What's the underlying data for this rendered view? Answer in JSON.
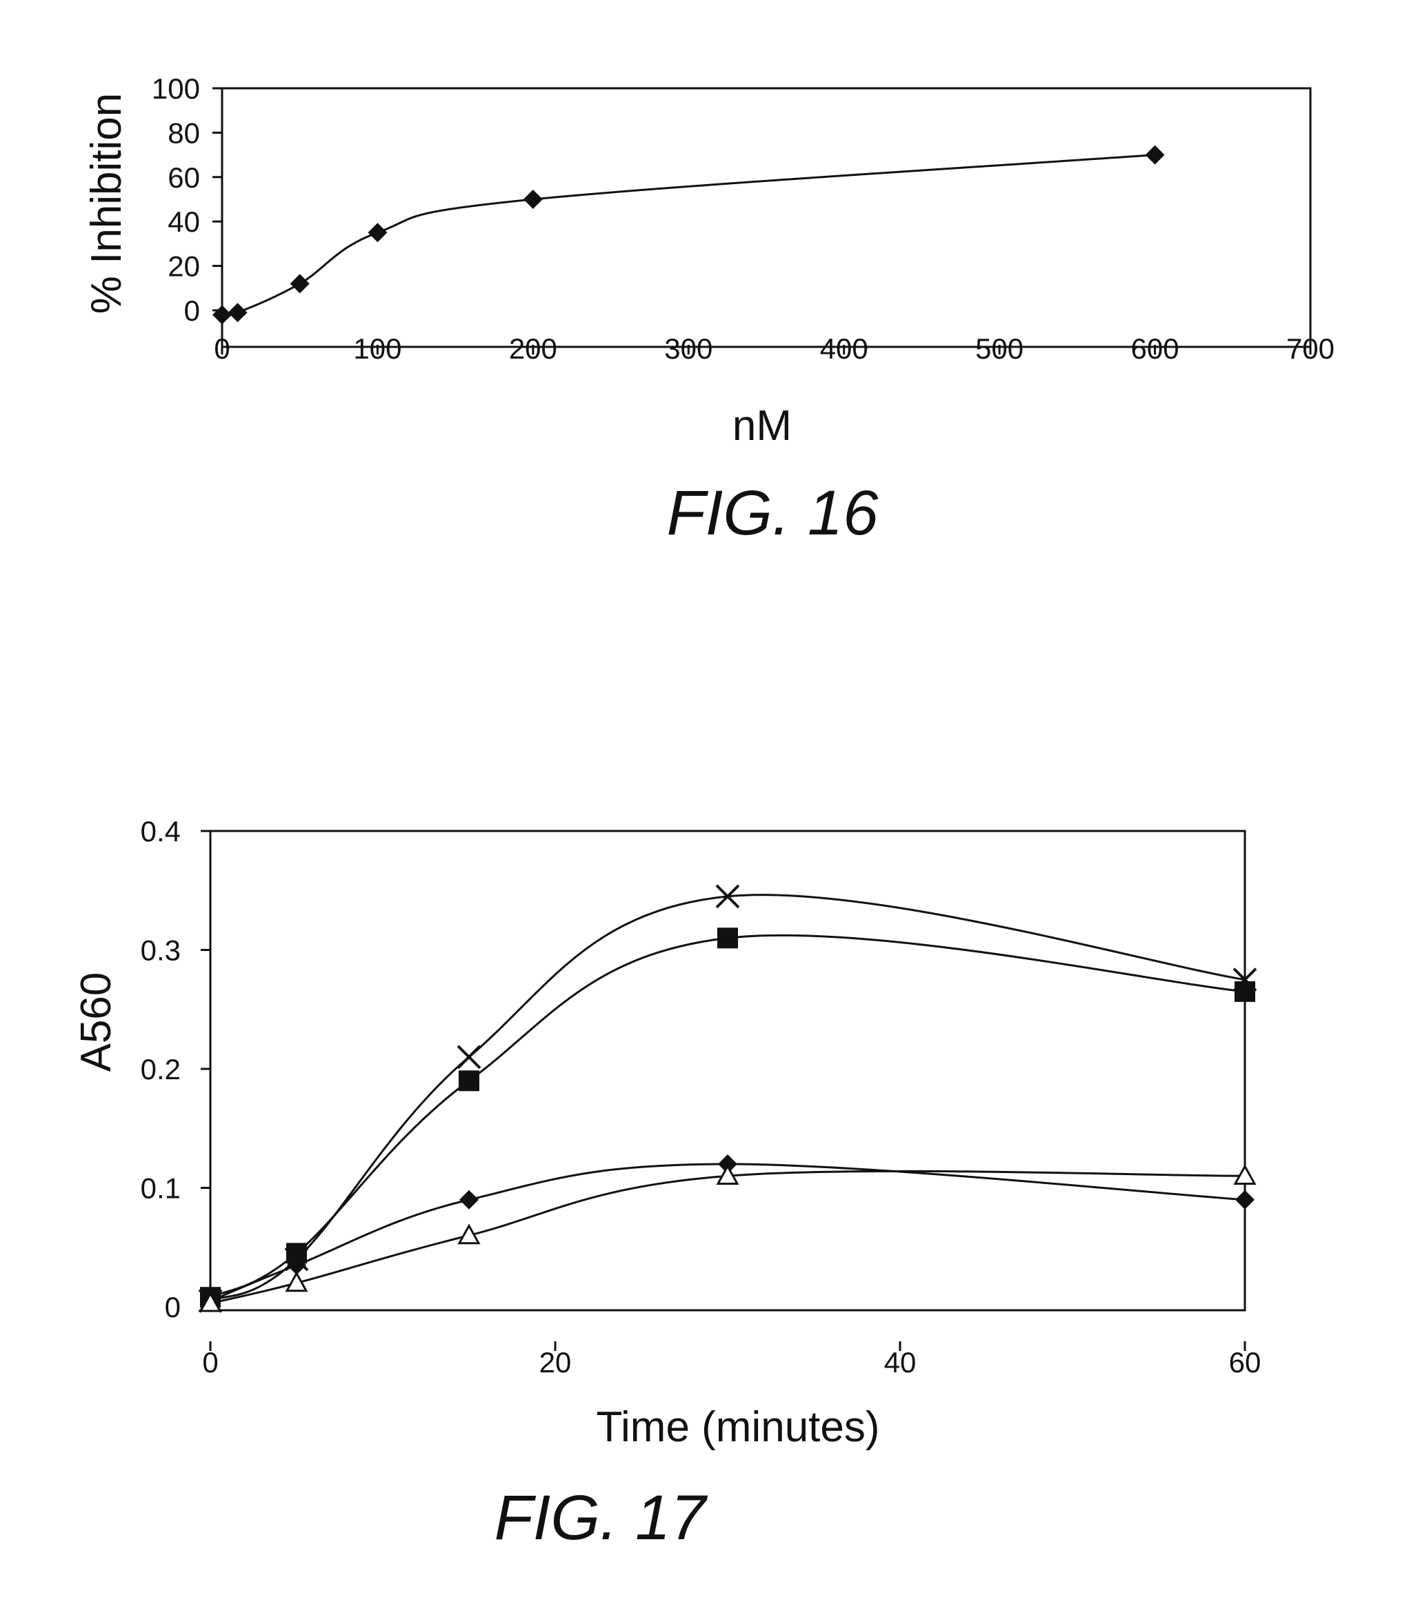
{
  "figures": [
    {
      "caption": "FIG. 16"
    },
    {
      "caption": "FIG. 17"
    }
  ],
  "chart_data": [
    {
      "type": "line",
      "title": "",
      "xlabel": "nM",
      "ylabel": "% Inhibition",
      "xlim": [
        0,
        700
      ],
      "ylim": [
        0,
        100
      ],
      "xticks": [
        "0",
        "100",
        "200",
        "300",
        "400",
        "500",
        "600",
        "700"
      ],
      "yticks": [
        "0",
        "20",
        "40",
        "60",
        "80",
        "100"
      ],
      "grid": false,
      "series": [
        {
          "marker": "diamond",
          "x": [
            0,
            10,
            50,
            100,
            200,
            600
          ],
          "y": [
            -2,
            -1,
            12,
            35,
            50,
            70
          ]
        }
      ]
    },
    {
      "type": "line",
      "title": "",
      "xlabel": "Time (minutes)",
      "ylabel": "A560",
      "xlim": [
        0,
        60
      ],
      "ylim": [
        0,
        0.4
      ],
      "xticks": [
        "0",
        "20",
        "40",
        "60"
      ],
      "yticks": [
        "0",
        "0.1",
        "0.2",
        "0.3",
        "0.4"
      ],
      "grid": false,
      "series": [
        {
          "marker": "x",
          "x": [
            0,
            5,
            15,
            30,
            60
          ],
          "y": [
            0.005,
            0.04,
            0.21,
            0.345,
            0.275
          ]
        },
        {
          "marker": "square",
          "x": [
            0,
            5,
            15,
            30,
            60
          ],
          "y": [
            0.008,
            0.045,
            0.19,
            0.31,
            0.265
          ]
        },
        {
          "marker": "diamond",
          "x": [
            0,
            5,
            15,
            30,
            60
          ],
          "y": [
            0.005,
            0.035,
            0.09,
            0.12,
            0.09
          ]
        },
        {
          "marker": "triangle",
          "x": [
            0,
            5,
            15,
            30,
            60
          ],
          "y": [
            0.003,
            0.02,
            0.06,
            0.11,
            0.11
          ]
        }
      ]
    }
  ]
}
